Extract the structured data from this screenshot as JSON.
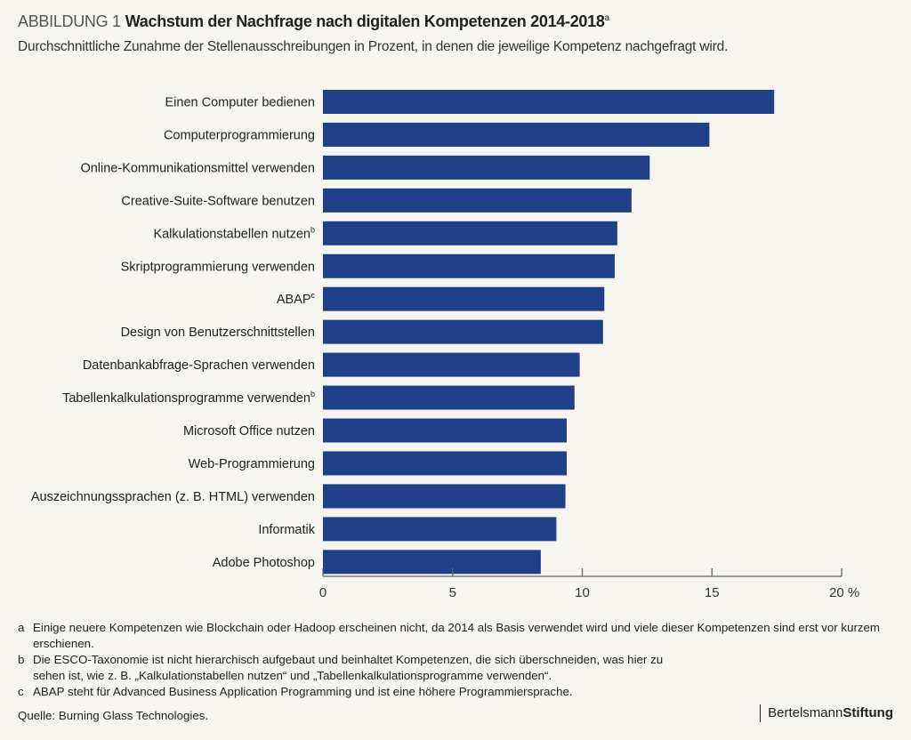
{
  "header": {
    "figure_label": "ABBILDUNG 1",
    "title": "Wachstum der Nachfrage nach digitalen Kompetenzen 2014-2018",
    "title_footnote": "a",
    "subtitle": "Durchschnittliche Zunahme der Stellenausschreibungen in Prozent, in denen die jeweilige Kompetenz nachgefragt wird."
  },
  "chart_data": {
    "type": "bar",
    "orientation": "horizontal",
    "title": "Wachstum der Nachfrage nach digitalen Kompetenzen 2014-2018",
    "xlabel": "",
    "ylabel": "",
    "xlim": [
      0,
      20
    ],
    "x_ticks": [
      "0",
      "5",
      "10",
      "15",
      "20 %"
    ],
    "x_tick_values": [
      0,
      5,
      10,
      15,
      20
    ],
    "grid": false,
    "bar_color": "#1f3f88",
    "categories": [
      "Einen Computer bedienen",
      "Computerprogrammierung",
      "Online-Kommunikationsmittel verwenden",
      "Creative-Suite-Software benutzen",
      "Kalkulationstabellen nutzen",
      "Skriptprogrammierung verwenden",
      "ABAP",
      "Design von Benutzerschnittstellen",
      "Datenbankabfrage-Sprachen verwenden",
      "Tabellenkalkulationsprogramme verwenden",
      "Microsoft Office nutzen",
      "Web-Programmierung",
      "Auszeichnungssprachen (z. B. HTML) verwenden",
      "Informatik",
      "Adobe Photoshop"
    ],
    "category_footnotes": [
      "",
      "",
      "",
      "",
      "b",
      "",
      "c",
      "",
      "",
      "b",
      "",
      "",
      "",
      "",
      ""
    ],
    "values": [
      17.4,
      14.9,
      12.6,
      11.9,
      11.35,
      11.25,
      10.85,
      10.8,
      9.9,
      9.7,
      9.4,
      9.4,
      9.35,
      9.0,
      8.4
    ]
  },
  "footnotes": [
    {
      "key": "a",
      "text": "Einige neuere Kompetenzen wie Blockchain oder Hadoop erscheinen nicht, da 2014 als Basis verwendet wird und viele dieser Kompetenzen sind erst vor kurzem erschienen."
    },
    {
      "key": "b",
      "text": "Die ESCO-Taxonomie ist nicht hierarchisch aufgebaut und beinhaltet Kompetenzen, die sich überschneiden, was hier zu sehen ist, wie z. B. „Kalkulationstabellen nutzen“ und „Tabellenkalkulationsprogramme verwenden“."
    },
    {
      "key": "c",
      "text": "ABAP steht für Advanced Business Application Programming und ist eine höhere Programmiersprache."
    }
  ],
  "source": "Quelle: Burning Glass Technologies.",
  "brand": {
    "part1": "Bertelsmann",
    "part2": "Stiftung"
  }
}
